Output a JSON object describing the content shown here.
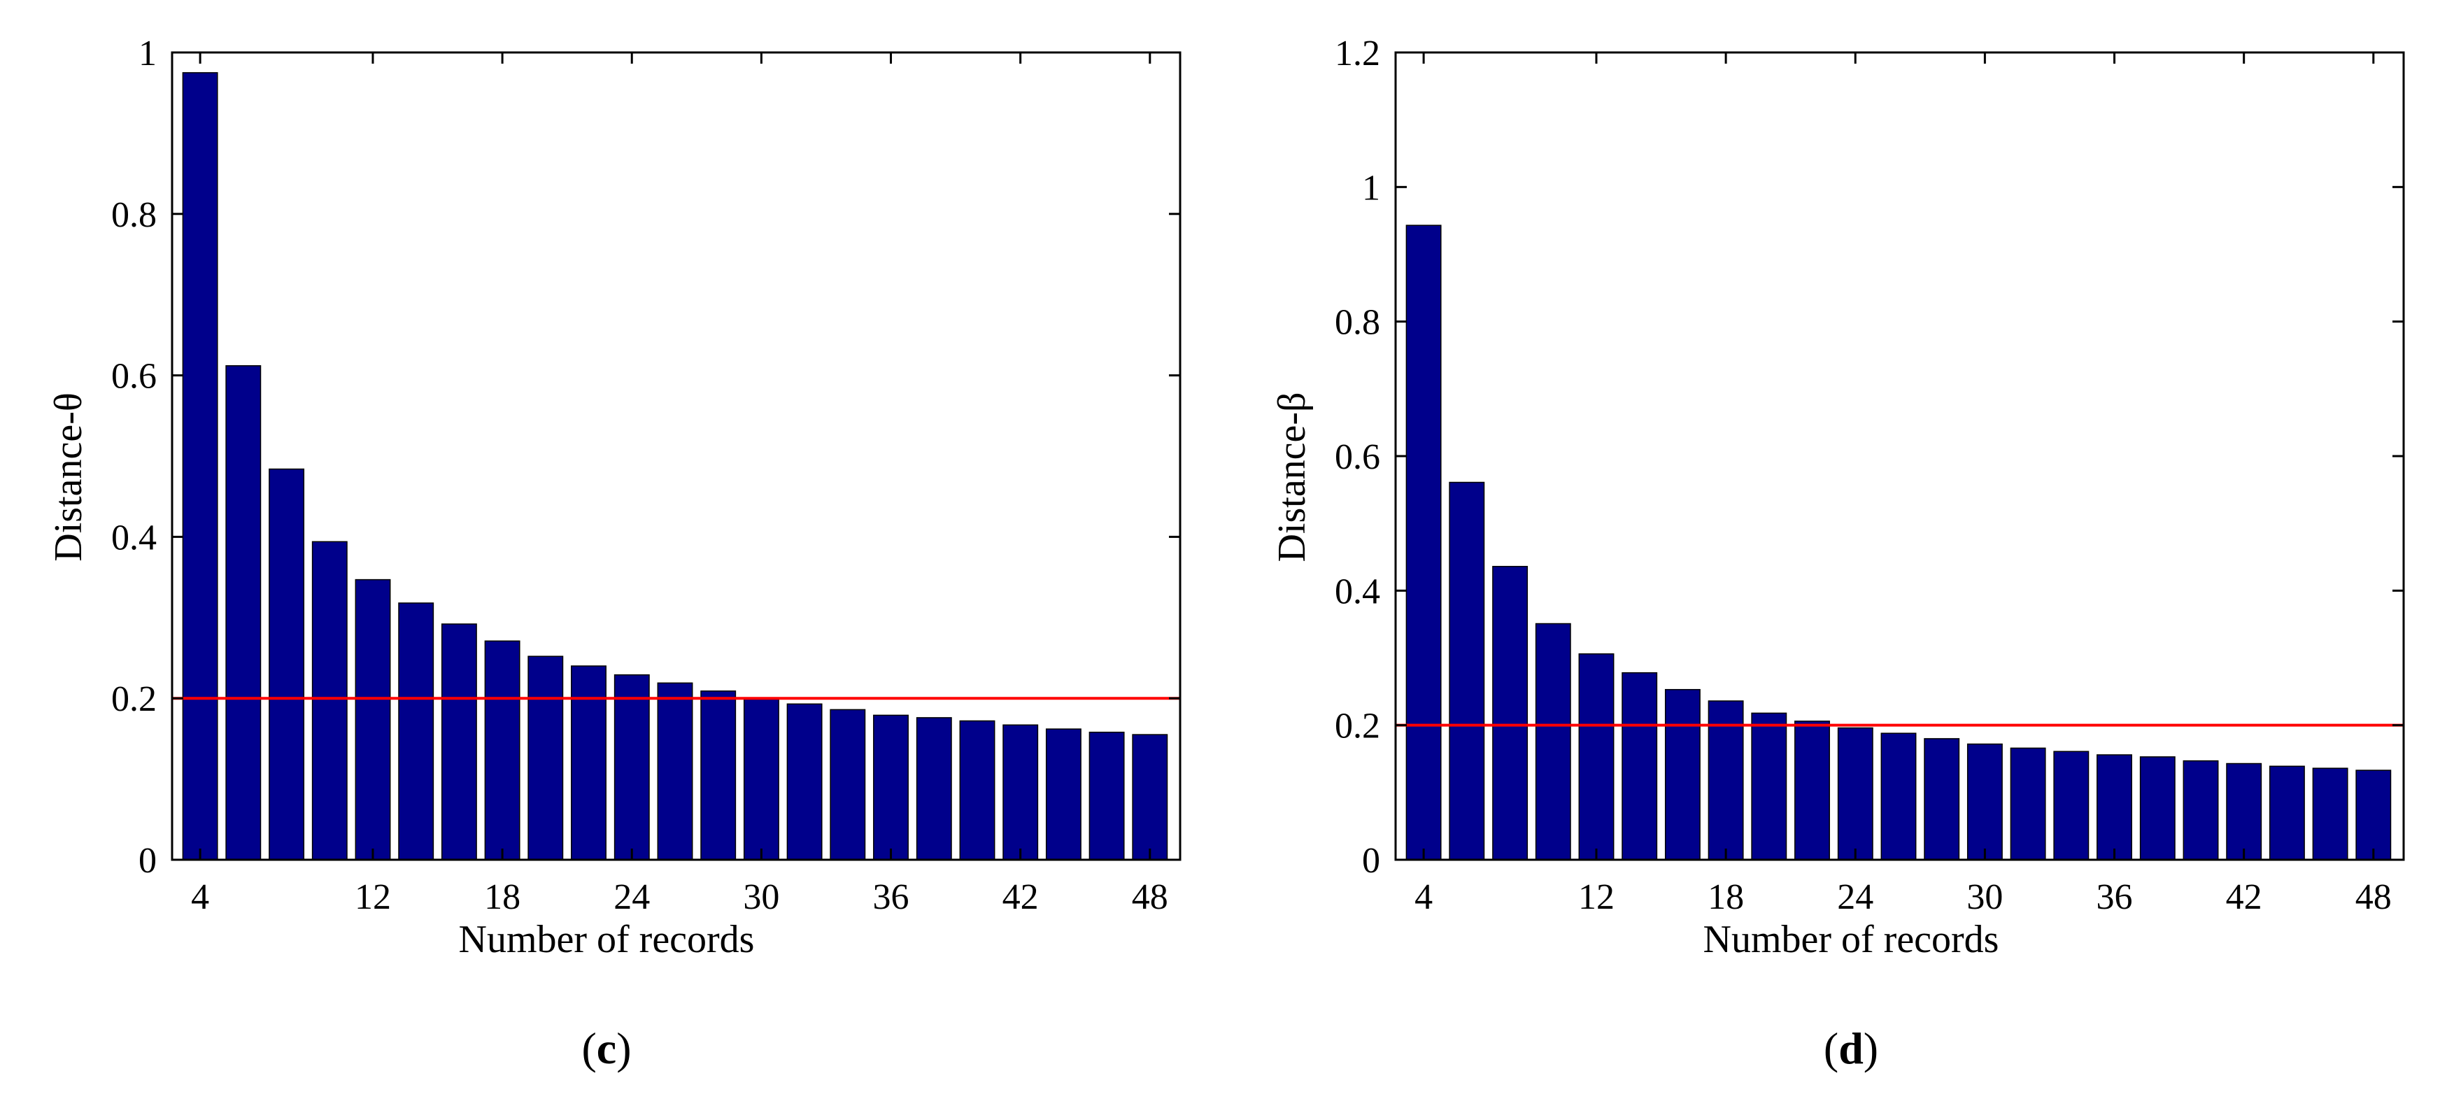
{
  "colors": {
    "bar": "#00008B",
    "bar_edge": "#000000",
    "threshold": "#FF0000",
    "axis": "#000000"
  },
  "chart_data": [
    {
      "type": "bar",
      "panel": "c",
      "panel_label": {
        "open": "(",
        "letter": "c",
        "close": ")"
      },
      "xlabel": "Number of records",
      "ylabel": "Distance-θ",
      "x": [
        4,
        6,
        8,
        10,
        12,
        14,
        16,
        18,
        20,
        22,
        24,
        26,
        28,
        30,
        32,
        34,
        36,
        38,
        40,
        42,
        44,
        46,
        48
      ],
      "values": [
        0.975,
        0.612,
        0.484,
        0.394,
        0.347,
        0.318,
        0.292,
        0.271,
        0.252,
        0.24,
        0.229,
        0.219,
        0.209,
        0.199,
        0.193,
        0.186,
        0.179,
        0.176,
        0.172,
        0.167,
        0.162,
        0.158,
        0.155
      ],
      "xticks": [
        4,
        12,
        18,
        24,
        30,
        36,
        42,
        48
      ],
      "xlim": [
        2.7,
        49.4
      ],
      "ylim": [
        0,
        1
      ],
      "yticks": [
        0,
        0.2,
        0.4,
        0.6,
        0.8,
        1
      ],
      "ytick_labels": [
        "0",
        "0.2",
        "0.4",
        "0.6",
        "0.8",
        "1"
      ],
      "threshold": 0.2
    },
    {
      "type": "bar",
      "panel": "d",
      "panel_label": {
        "open": "(",
        "letter": "d",
        "close": ")"
      },
      "xlabel": "Number of records",
      "ylabel": "Distance-β",
      "x": [
        4,
        6,
        8,
        10,
        12,
        14,
        16,
        18,
        20,
        22,
        24,
        26,
        28,
        30,
        32,
        34,
        36,
        38,
        40,
        42,
        44,
        46,
        48
      ],
      "values": [
        0.943,
        0.561,
        0.436,
        0.351,
        0.306,
        0.278,
        0.253,
        0.236,
        0.218,
        0.206,
        0.196,
        0.188,
        0.18,
        0.172,
        0.166,
        0.161,
        0.156,
        0.153,
        0.147,
        0.143,
        0.139,
        0.136,
        0.133
      ],
      "xticks": [
        4,
        12,
        18,
        24,
        30,
        36,
        42,
        48
      ],
      "xlim": [
        2.7,
        49.4
      ],
      "ylim": [
        0,
        1.2
      ],
      "yticks": [
        0,
        0.2,
        0.4,
        0.6,
        0.8,
        1,
        1.2
      ],
      "ytick_labels": [
        "0",
        "0.2",
        "0.4",
        "0.6",
        "0.8",
        "1",
        "1.2"
      ],
      "threshold": 0.2
    }
  ]
}
